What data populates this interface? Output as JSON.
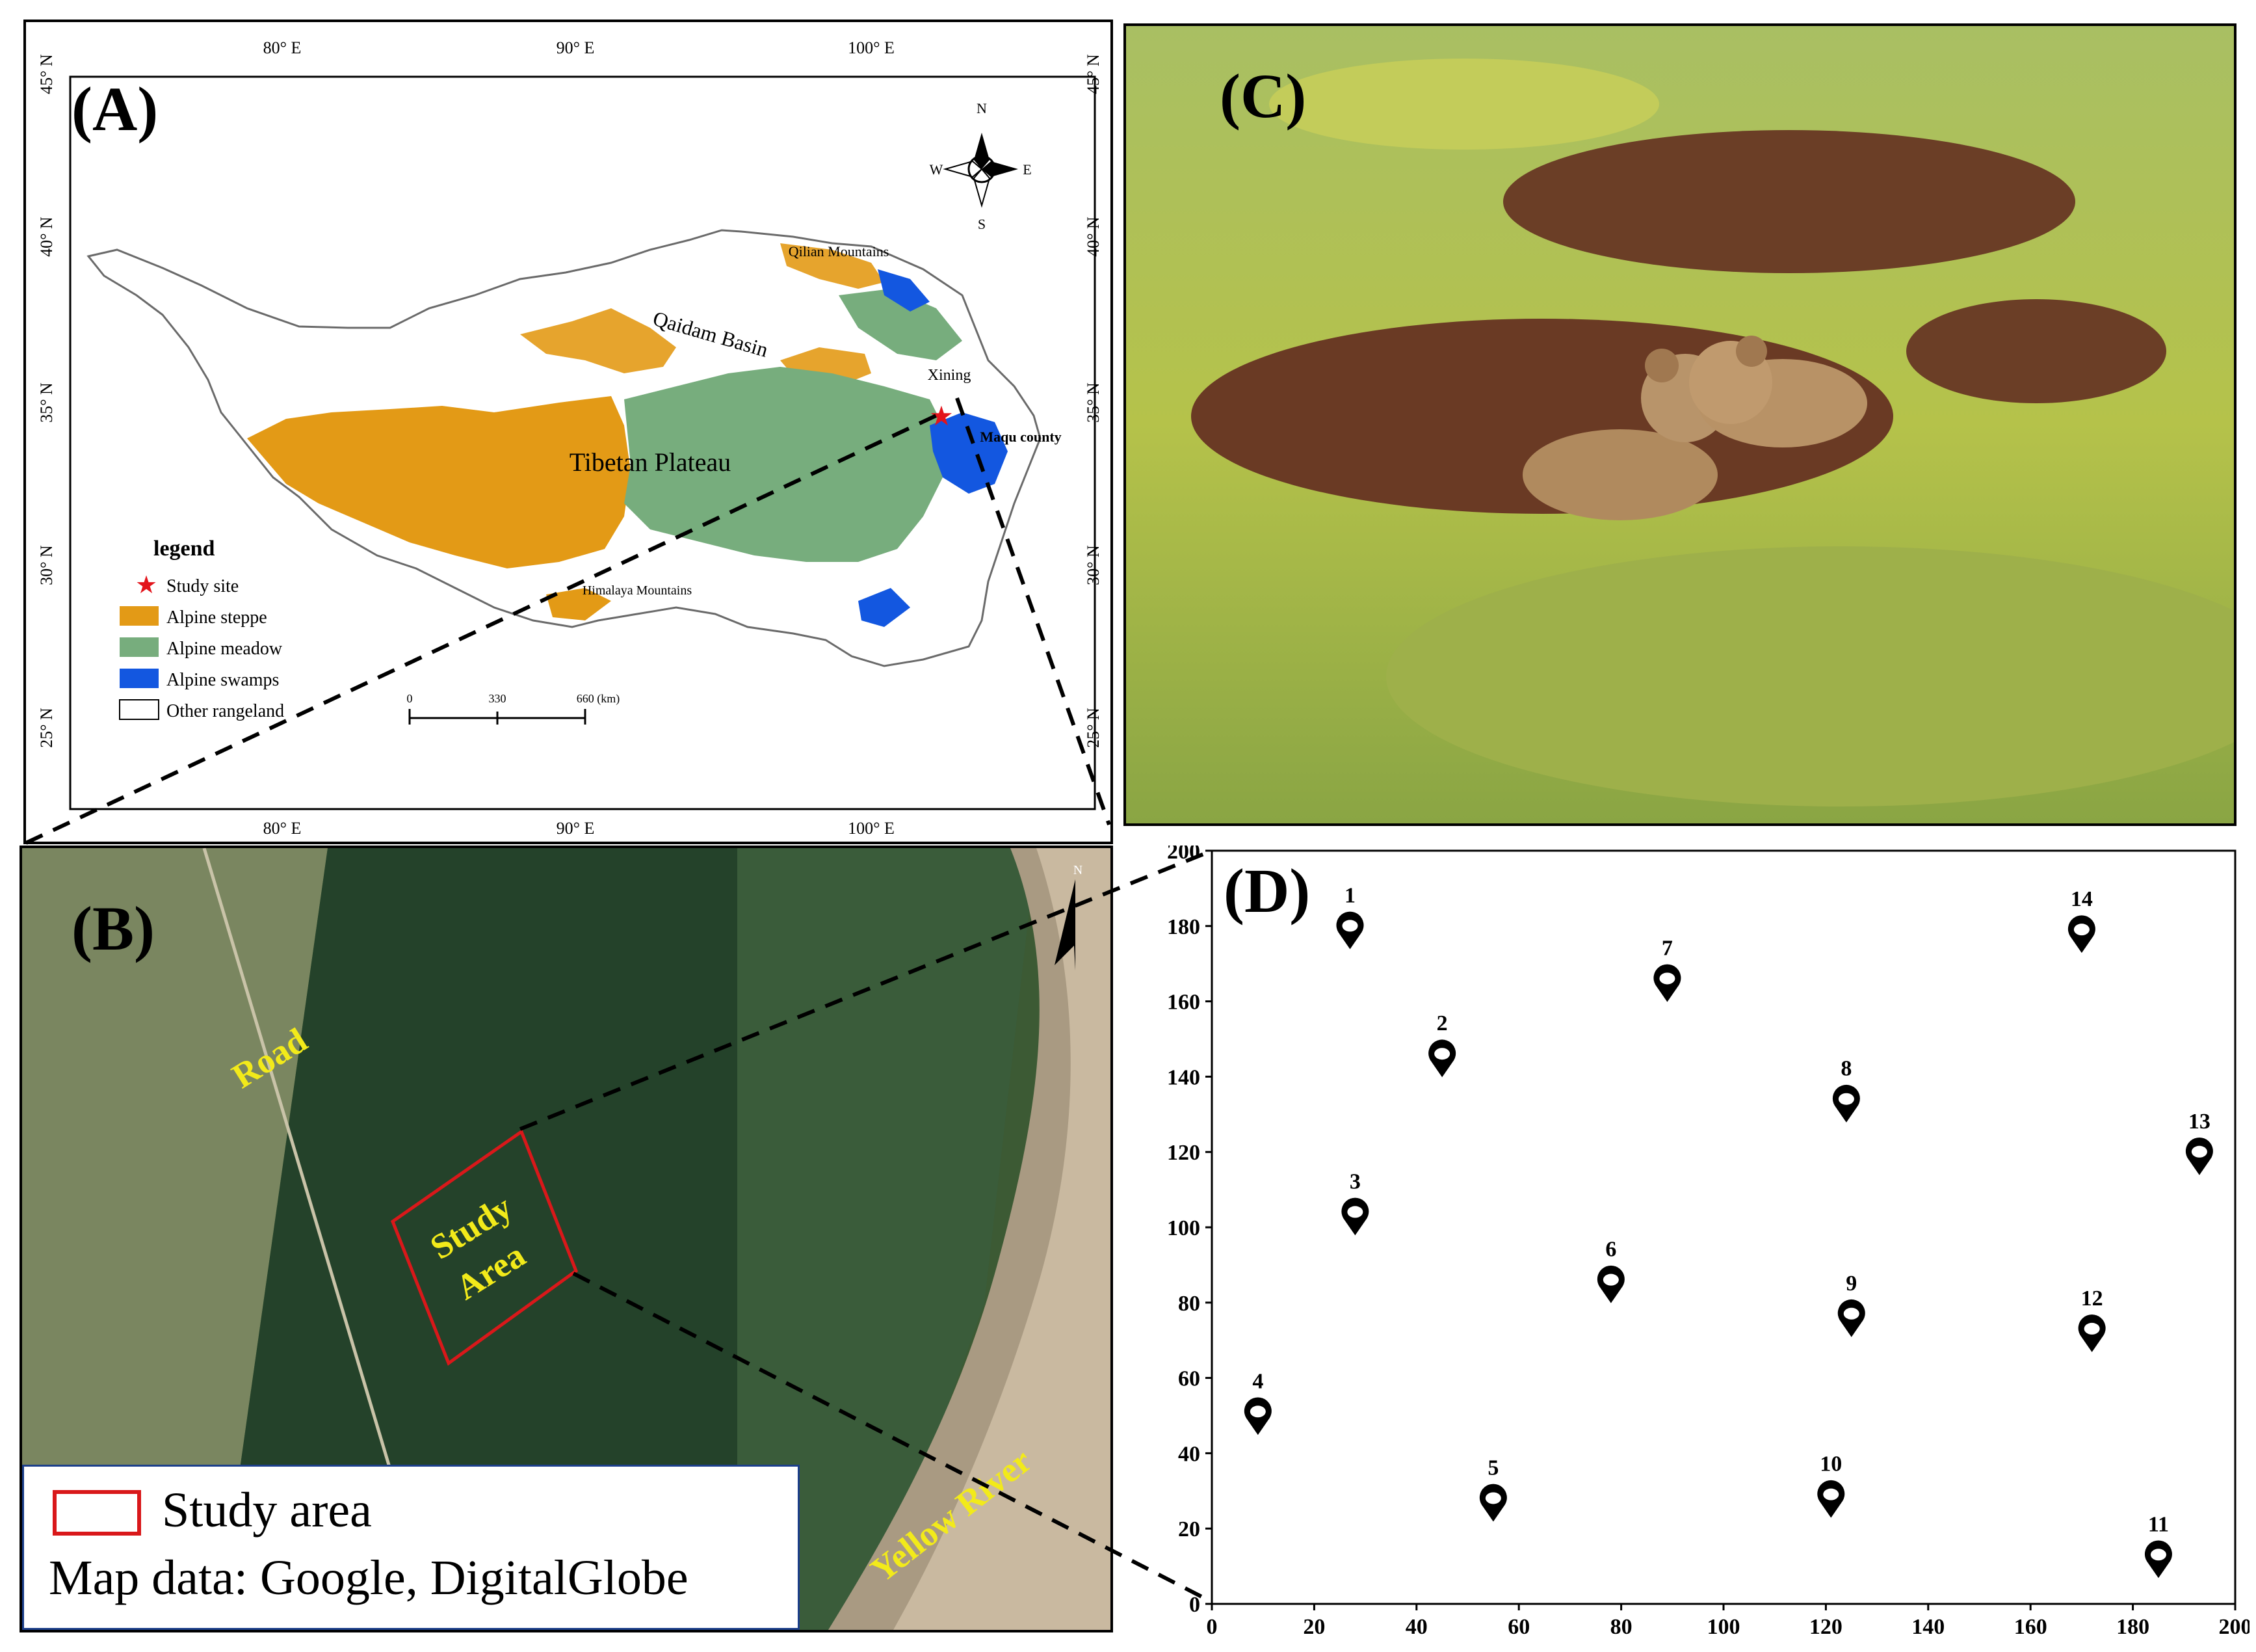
{
  "panel_a": {
    "label": "(A)",
    "longitudes": [
      "80° E",
      "90° E",
      "100° E"
    ],
    "latitudes": [
      "45° N",
      "40° N",
      "35° N",
      "30° N",
      "25° N"
    ],
    "compass": {
      "n": "N",
      "s": "S",
      "e": "E",
      "w": "W"
    },
    "places": {
      "qilian": "Qilian Mountains",
      "qaidam": "Qaidam Basin",
      "xining": "Xining",
      "plateau": "Tibetan Plateau",
      "maqu": "Maqu county",
      "himalaya": "Himalaya Mountains"
    },
    "legend": {
      "title": "legend",
      "items": [
        {
          "label": "Study site",
          "color": "#e3141b"
        },
        {
          "label": "Alpine steppe",
          "color": "#e39a16"
        },
        {
          "label": "Alpine meadow",
          "color": "#77ad7d"
        },
        {
          "label": "Alpine swamps",
          "color": "#1357e0"
        },
        {
          "label": "Other rangeland",
          "color": "#ffffff"
        }
      ]
    },
    "scale": {
      "ticks": [
        "0",
        "330",
        "660 (km)"
      ]
    }
  },
  "panel_b": {
    "label": "(B)",
    "road": "Road",
    "study_area": [
      "Study",
      "Area"
    ],
    "river": "Yellow River",
    "north": "N",
    "legend_study": "Study area",
    "legend_credit": "Map data: Google, DigitalGlobe",
    "accent": "#f2ea1a",
    "box_color": "#d9181a"
  },
  "panel_c": {
    "label": "(C)"
  },
  "chart_data": {
    "label": "(D)",
    "type": "scatter",
    "xlim": [
      0,
      200
    ],
    "ylim": [
      0,
      200
    ],
    "xticks": [
      0,
      20,
      40,
      60,
      80,
      100,
      120,
      140,
      160,
      180,
      200
    ],
    "yticks": [
      0,
      20,
      40,
      60,
      80,
      100,
      120,
      140,
      160,
      180,
      200
    ],
    "points": [
      {
        "id": "1",
        "x": 27,
        "y": 178
      },
      {
        "id": "2",
        "x": 45,
        "y": 144
      },
      {
        "id": "3",
        "x": 28,
        "y": 102
      },
      {
        "id": "4",
        "x": 9,
        "y": 49
      },
      {
        "id": "5",
        "x": 55,
        "y": 26
      },
      {
        "id": "6",
        "x": 78,
        "y": 84
      },
      {
        "id": "7",
        "x": 89,
        "y": 164
      },
      {
        "id": "8",
        "x": 124,
        "y": 132
      },
      {
        "id": "9",
        "x": 125,
        "y": 75
      },
      {
        "id": "10",
        "x": 121,
        "y": 27
      },
      {
        "id": "11",
        "x": 185,
        "y": 11
      },
      {
        "id": "12",
        "x": 172,
        "y": 71
      },
      {
        "id": "13",
        "x": 193,
        "y": 118
      },
      {
        "id": "14",
        "x": 170,
        "y": 177
      }
    ]
  }
}
